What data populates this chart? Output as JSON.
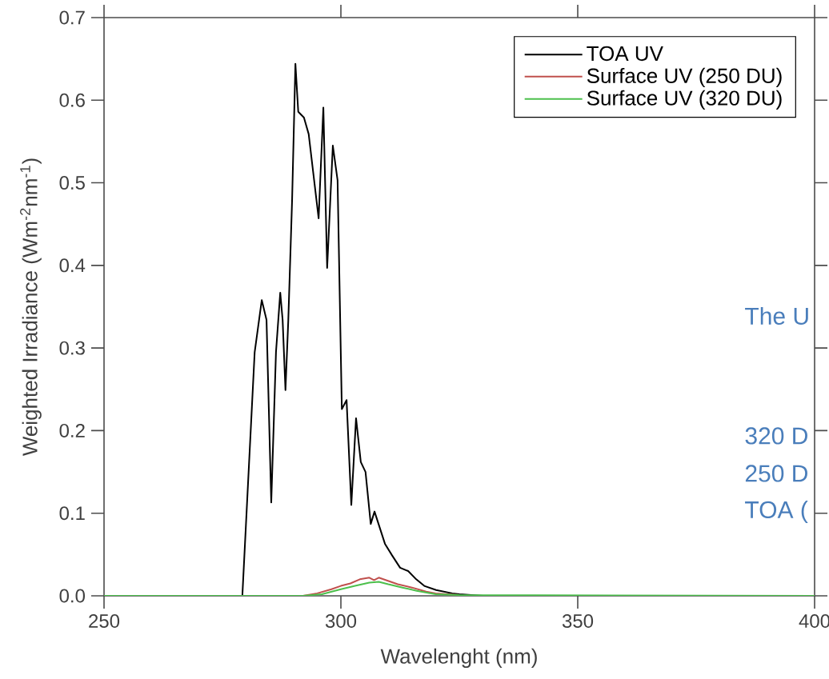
{
  "chart_data": {
    "type": "line",
    "xlabel": "Wavelenght (nm)",
    "ylabel": "Weighted Irradiance (Wm$^{-2}$nm$^{-1}$)",
    "xlim": [
      250,
      400
    ],
    "ylim": [
      0,
      0.7
    ],
    "xticks": [
      250,
      300,
      350,
      400
    ],
    "yticks": [
      {
        "value": 0,
        "label": "0.0"
      },
      0.1,
      0.2,
      0.3,
      0.4,
      0.5,
      0.6,
      0.7
    ],
    "grid": false,
    "legend": "top right",
    "marker": "none",
    "line_style": "solid",
    "series": [
      {
        "name": "TOA UV",
        "color": "#000000",
        "x": [
          250,
          279.2,
          281.8,
          283.3,
          284.3,
          285.3,
          286.3,
          287.2,
          287.7,
          288.3,
          288.9,
          289.7,
          290.4,
          291.0,
          292.2,
          293.2,
          295.3,
          296.3,
          297.1,
          298.3,
          299.3,
          300.2,
          301.2,
          302.2,
          303.2,
          304.2,
          305.2,
          306.3,
          307.1,
          309.3,
          310.8,
          312.5,
          314.2,
          315.9,
          317.6,
          320.1,
          323.5,
          325,
          330,
          400
        ],
        "values": [
          0,
          0,
          0.295,
          0.358,
          0.334,
          0.113,
          0.295,
          0.367,
          0.334,
          0.249,
          0.334,
          0.479,
          0.644,
          0.586,
          0.579,
          0.559,
          0.457,
          0.591,
          0.397,
          0.545,
          0.503,
          0.226,
          0.237,
          0.11,
          0.215,
          0.162,
          0.15,
          0.087,
          0.102,
          0.063,
          0.049,
          0.034,
          0.03,
          0.02,
          0.012,
          0.007,
          0.003,
          0.002,
          0,
          0
        ]
      },
      {
        "name": "Surface UV (250 DU)",
        "color": "#c0504d",
        "x": [
          292,
          295,
          298,
          300,
          302,
          304,
          306,
          307,
          308,
          310,
          312,
          315,
          318,
          320,
          325
        ],
        "values": [
          0,
          0.003,
          0.008,
          0.012,
          0.015,
          0.02,
          0.022,
          0.019,
          0.022,
          0.018,
          0.014,
          0.01,
          0.005,
          0.003,
          0.001
        ]
      },
      {
        "name": "Surface UV (320 DU)",
        "color": "#4cc04c",
        "x": [
          250,
          292,
          296,
          300,
          303,
          306,
          308,
          310,
          313,
          316,
          320,
          325,
          400
        ],
        "values": [
          0,
          0,
          0.002,
          0.008,
          0.012,
          0.016,
          0.017,
          0.014,
          0.01,
          0.006,
          0.002,
          0.001,
          0
        ]
      }
    ],
    "annotations": [
      "The U",
      "320 D",
      "250 D",
      "TOA ("
    ]
  }
}
